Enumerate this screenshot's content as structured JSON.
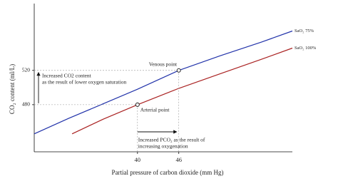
{
  "chart_data": {
    "type": "line",
    "ylabel": "CO₂ content (ml/L)",
    "xlabel": "Partial pressure of carbon dioxide (mm Hg)",
    "xlim": [
      25,
      62.5
    ],
    "ylim": [
      425,
      598
    ],
    "xticks": [
      40,
      46
    ],
    "yticks": [
      480,
      520
    ],
    "series": [
      {
        "name": "SaO₂ 75%",
        "color": "#2233aa",
        "x": [
          25,
          30,
          35,
          40,
          46,
          52,
          58,
          62.5
        ],
        "values": [
          446,
          464,
          481,
          498,
          520,
          537,
          553,
          566
        ]
      },
      {
        "name": "SaO₂ 100%",
        "color": "#aa2222",
        "x": [
          30.5,
          35,
          40,
          46,
          52,
          58,
          62.5
        ],
        "values": [
          446,
          463,
          480,
          499,
          516,
          533,
          546
        ]
      }
    ],
    "points": [
      {
        "label": "Venous point",
        "x": 46,
        "y": 520
      },
      {
        "label": "Arterial point",
        "x": 40,
        "y": 480
      }
    ],
    "annotations": [
      [
        "Increased CO2 content",
        "as the result of lower oxygen saturation"
      ],
      [
        "Increased PCO₂ as the result of",
        "increasing oxygenation"
      ]
    ]
  }
}
